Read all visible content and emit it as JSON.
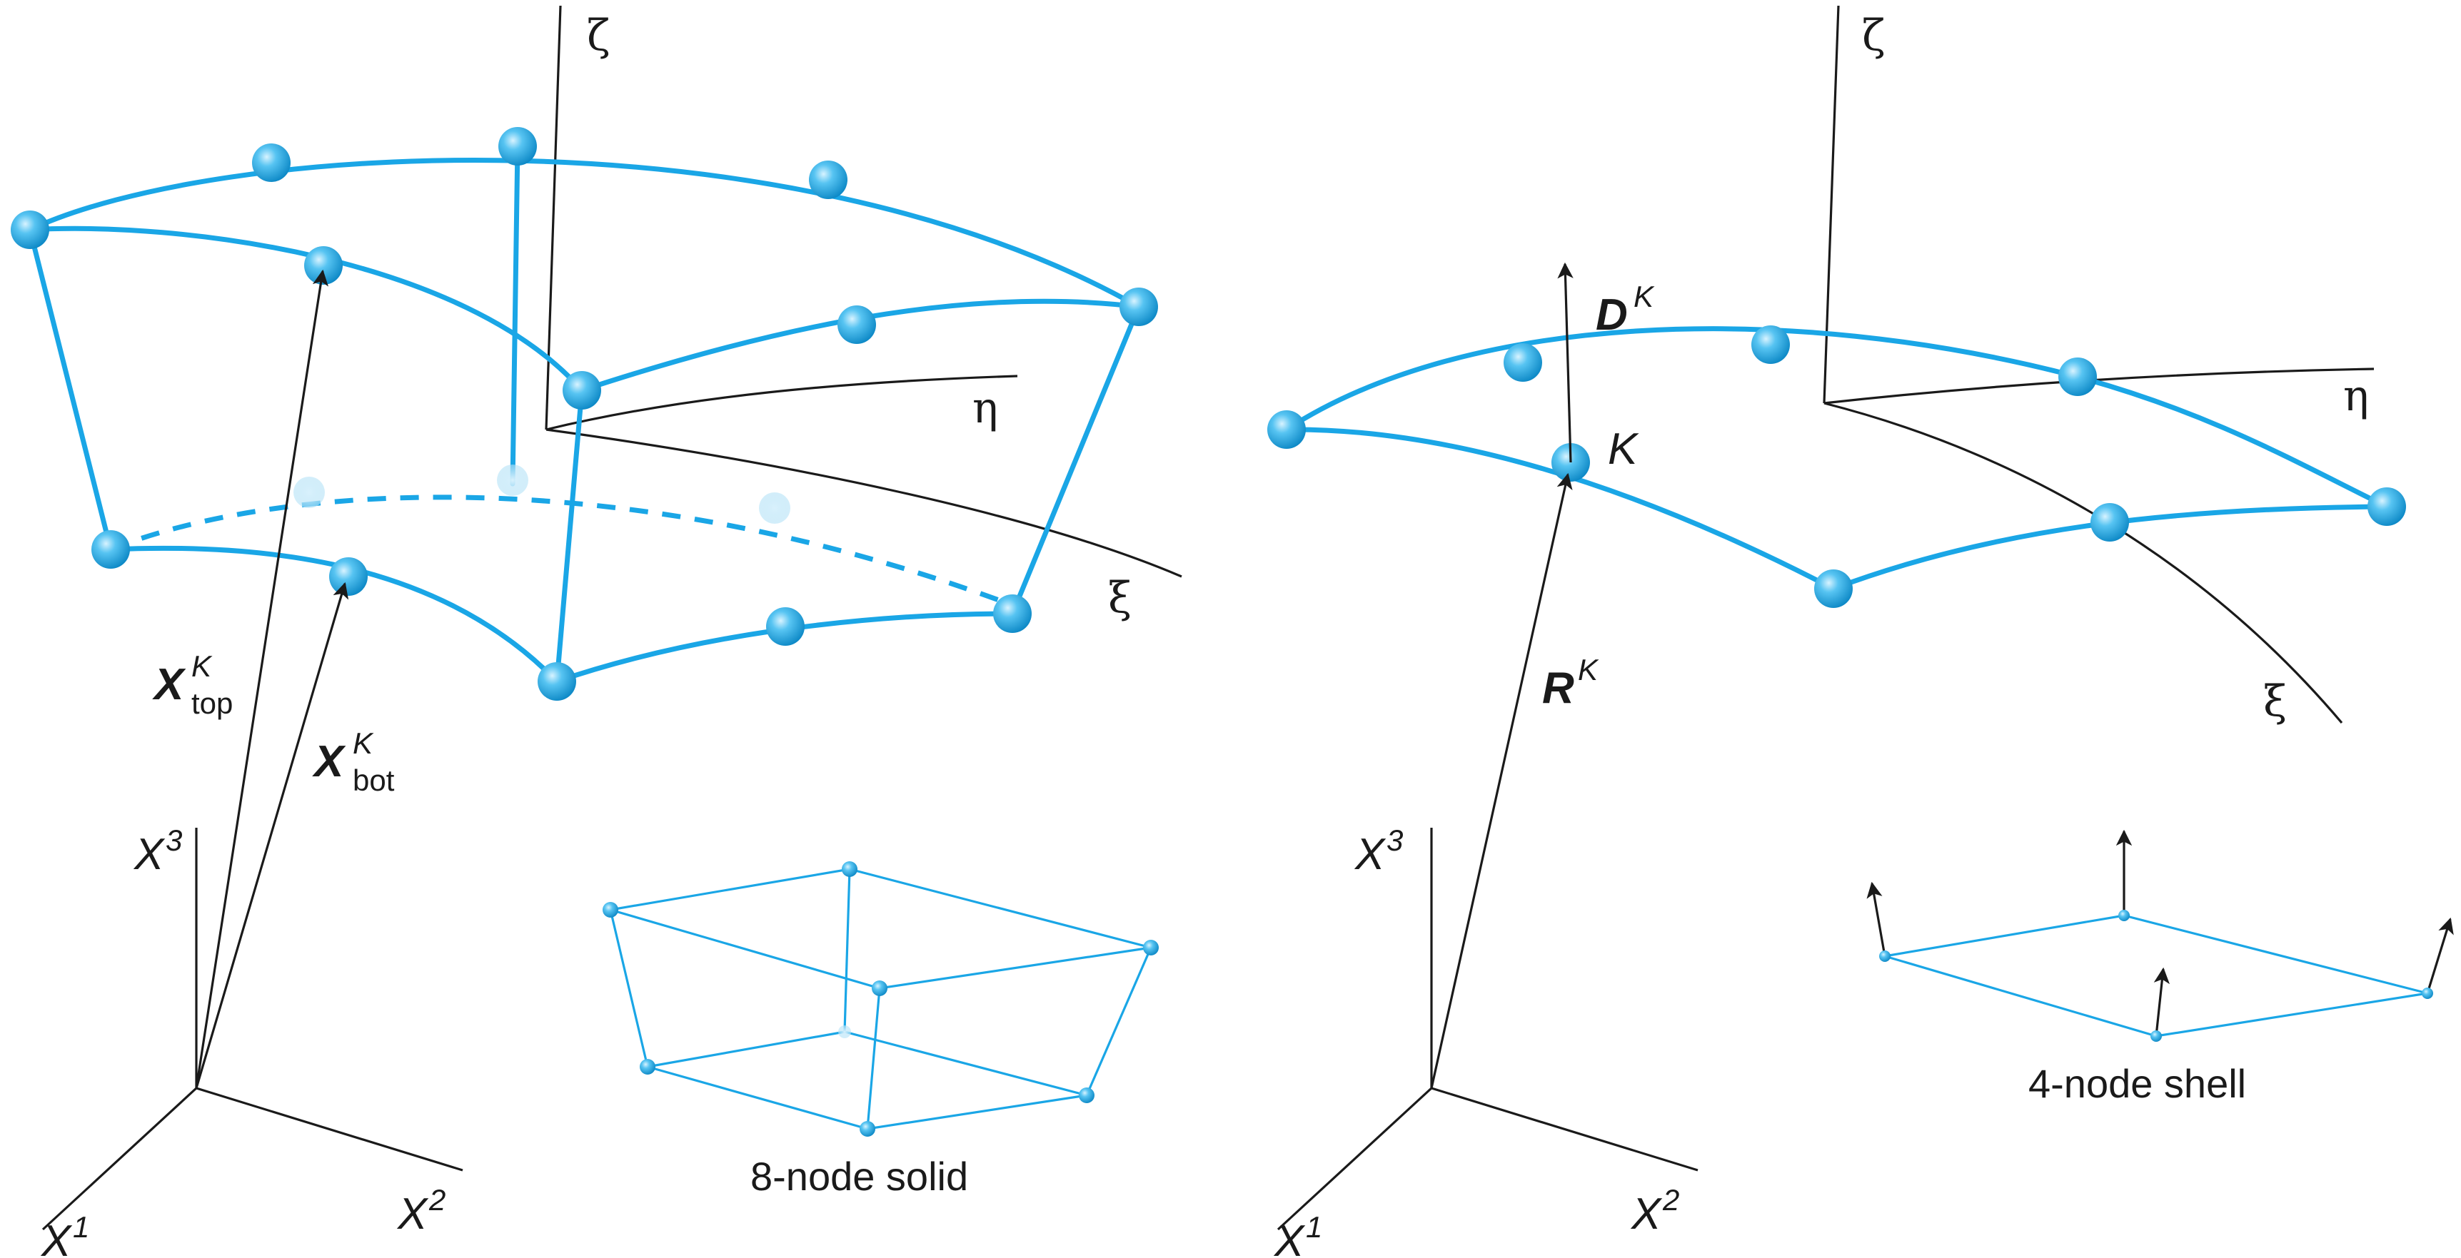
{
  "left_panel": {
    "zeta": "ζ",
    "eta": "η",
    "xi": "ξ",
    "vec_top": {
      "base": "X",
      "sup": "K",
      "sub": "top"
    },
    "vec_bot": {
      "base": "X",
      "sup": "K",
      "sub": "bot"
    },
    "axis_x1": {
      "base": "X",
      "sup": "1"
    },
    "axis_x2": {
      "base": "X",
      "sup": "2"
    },
    "axis_x3": {
      "base": "X",
      "sup": "3"
    },
    "inset_caption": "8-node solid"
  },
  "right_panel": {
    "zeta": "ζ",
    "eta": "η",
    "xi": "ξ",
    "vec_d": {
      "base": "D",
      "sup": "K"
    },
    "vec_r": {
      "base": "R",
      "sup": "K"
    },
    "node_label": "K",
    "axis_x1": {
      "base": "X",
      "sup": "1"
    },
    "axis_x2": {
      "base": "X",
      "sup": "2"
    },
    "axis_x3": {
      "base": "X",
      "sup": "3"
    },
    "inset_caption": "4-node shell"
  },
  "colors": {
    "element": "#1aa6e6",
    "ink": "#1a1a1a"
  }
}
